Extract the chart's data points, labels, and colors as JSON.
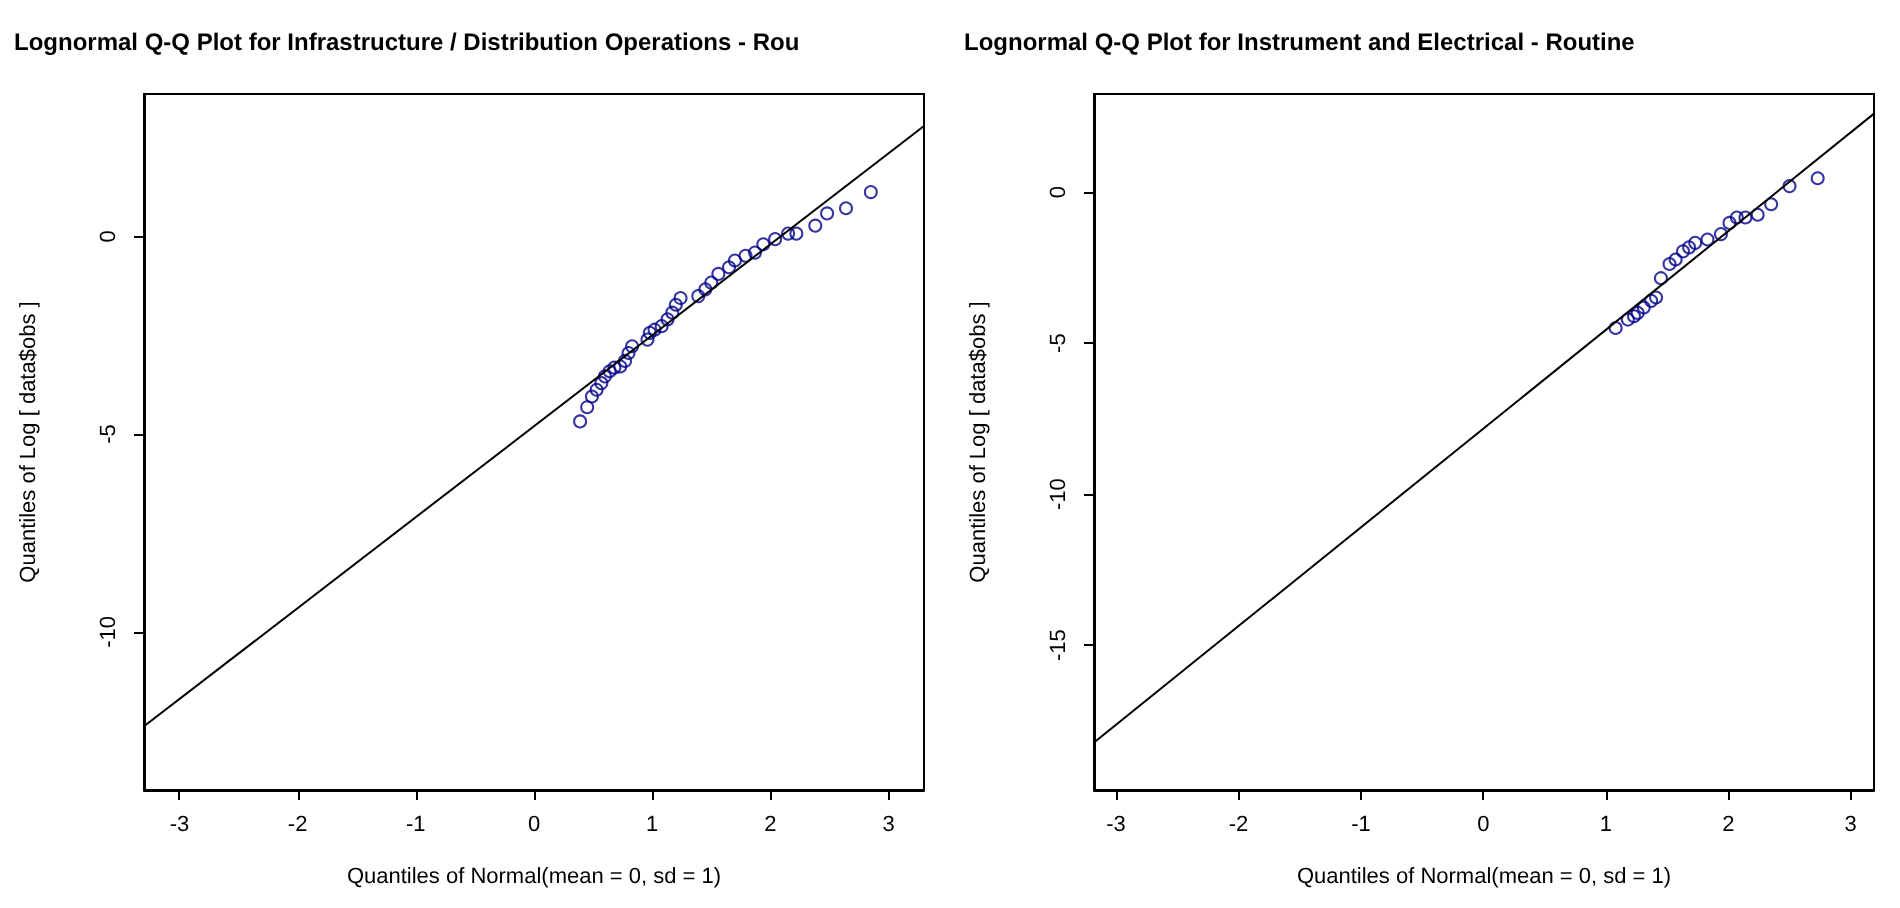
{
  "chart_data": [
    {
      "type": "scatter",
      "title": "Lognormal Q-Q Plot for Infrastructure / Distribution Operations - Rou",
      "xlabel": "Quantiles of Normal(mean = 0, sd = 1)",
      "ylabel": "Quantiles of Log [ data$obs ]",
      "xlim": [
        -3.3,
        3.3
      ],
      "ylim": [
        -14,
        3.6
      ],
      "xticks": [
        -3,
        -2,
        -1,
        0,
        1,
        2,
        3
      ],
      "yticks": [
        -10,
        -5,
        0
      ],
      "grid": false,
      "series": [
        {
          "color": "#00008b",
          "marker": "circle",
          "x": [
            0.39,
            0.45,
            0.49,
            0.53,
            0.57,
            0.6,
            0.64,
            0.68,
            0.73,
            0.77,
            0.8,
            0.83,
            0.96,
            0.98,
            1.02,
            1.08,
            1.13,
            1.17,
            1.2,
            1.24,
            1.39,
            1.45,
            1.5,
            1.56,
            1.65,
            1.7,
            1.79,
            1.87,
            1.94,
            2.04,
            2.15,
            2.22,
            2.38,
            2.48,
            2.64,
            2.85
          ],
          "values": [
            -4.68,
            -4.32,
            -4.05,
            -3.88,
            -3.71,
            -3.54,
            -3.41,
            -3.32,
            -3.29,
            -3.15,
            -2.95,
            -2.78,
            -2.61,
            -2.44,
            -2.36,
            -2.27,
            -2.1,
            -1.93,
            -1.73,
            -1.56,
            -1.51,
            -1.34,
            -1.17,
            -0.95,
            -0.78,
            -0.61,
            -0.49,
            -0.41,
            -0.2,
            -0.07,
            0.07,
            0.07,
            0.27,
            0.58,
            0.71,
            1.12
          ]
        },
        {
          "type": "line",
          "color": "#000000",
          "marker": "none",
          "line_style": "solid",
          "x": [
            -3.3,
            3.3
          ],
          "values": [
            -12.39,
            2.79
          ]
        }
      ]
    },
    {
      "type": "scatter",
      "title": "Lognormal Q-Q Plot for Instrument and Electrical - Routine",
      "xlabel": "Quantiles of Normal(mean = 0, sd = 1)",
      "ylabel": "Quantiles of Log [ data$obs ]",
      "xlim": [
        -3.18,
        3.19
      ],
      "ylim": [
        -19.8,
        3.25
      ],
      "xticks": [
        -3,
        -2,
        -1,
        0,
        1,
        2,
        3
      ],
      "yticks": [
        -15,
        -10,
        -5,
        0
      ],
      "grid": false,
      "series": [
        {
          "color": "#00008b",
          "marker": "circle",
          "x": [
            1.08,
            1.18,
            1.23,
            1.26,
            1.31,
            1.37,
            1.41,
            1.45,
            1.52,
            1.57,
            1.63,
            1.68,
            1.73,
            1.83,
            1.94,
            2.01,
            2.07,
            2.14,
            2.24,
            2.35,
            2.5,
            2.73
          ],
          "values": [
            -4.5,
            -4.22,
            -4.11,
            -4.0,
            -3.82,
            -3.6,
            -3.49,
            -2.85,
            -2.38,
            -2.23,
            -1.96,
            -1.83,
            -1.68,
            -1.57,
            -1.39,
            -1.02,
            -0.84,
            -0.84,
            -0.75,
            -0.4,
            0.2,
            0.46
          ]
        },
        {
          "type": "line",
          "color": "#000000",
          "marker": "none",
          "line_style": "solid",
          "x": [
            -3.18,
            3.19
          ],
          "values": [
            -18.23,
            2.6
          ]
        }
      ]
    }
  ]
}
